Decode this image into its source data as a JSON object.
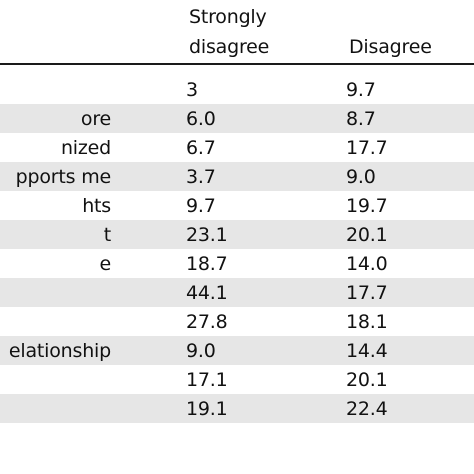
{
  "header": {
    "col1": "Strongly",
    "col1_line2": "disagree",
    "col2": "Disagree"
  },
  "rows": [
    {
      "label": "",
      "strongly_disagree": "3",
      "disagree": "9.7",
      "shaded": false
    },
    {
      "label": "ore",
      "strongly_disagree": "6.0",
      "disagree": "8.7",
      "shaded": true
    },
    {
      "label": "nized",
      "strongly_disagree": "6.7",
      "disagree": "17.7",
      "shaded": false
    },
    {
      "label": "pports me",
      "strongly_disagree": "3.7",
      "disagree": "9.0",
      "shaded": true
    },
    {
      "label": "hts",
      "strongly_disagree": "9.7",
      "disagree": "19.7",
      "shaded": false
    },
    {
      "label": "t",
      "strongly_disagree": "23.1",
      "disagree": "20.1",
      "shaded": true
    },
    {
      "label": "e",
      "strongly_disagree": "18.7",
      "disagree": "14.0",
      "shaded": false
    },
    {
      "label": "",
      "strongly_disagree": "44.1",
      "disagree": "17.7",
      "shaded": true
    },
    {
      "label": "",
      "strongly_disagree": "27.8",
      "disagree": "18.1",
      "shaded": false
    },
    {
      "label": "elationship",
      "strongly_disagree": "9.0",
      "disagree": "14.4",
      "shaded": true
    },
    {
      "label": "",
      "strongly_disagree": "17.1",
      "disagree": "20.1",
      "shaded": false
    },
    {
      "label": "",
      "strongly_disagree": "19.1",
      "disagree": "22.4",
      "shaded": true
    }
  ]
}
